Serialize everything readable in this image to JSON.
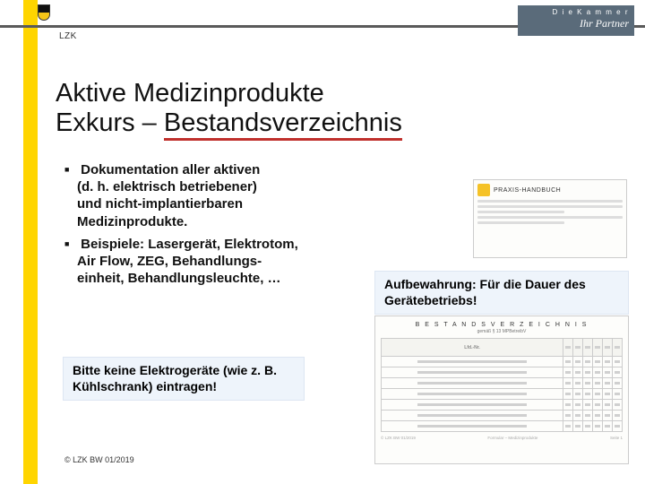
{
  "header": {
    "lzk": "LZK",
    "kammer_line1": "D i e   K a m m e r",
    "kammer_line2": "Ihr Partner"
  },
  "title": {
    "line1": "Aktive Medizinprodukte",
    "line2_prefix": "Exkurs – ",
    "line2_accent": "Bestandsverzeichnis"
  },
  "bullets": [
    {
      "lines": [
        "Dokumentation aller aktiven",
        "(d. h. elektrisch betriebener)",
        "und nicht-implantierbaren",
        "Medizinprodukte."
      ]
    },
    {
      "lines": [
        "Beispiele: Lasergerät, Elektrotom,",
        "Air Flow, ZEG, Behandlungs-",
        "einheit, Behandlungsleuchte, …"
      ]
    }
  ],
  "callout_right": "Aufbewahrung: Für die Dauer des Gerätebetriebs!",
  "callout_left": "Bitte keine Elektrogeräte (wie z. B. Kühlschrank) eintragen!",
  "praxis_handbuch": {
    "title": "PRAXIS-HANDBUCH"
  },
  "form": {
    "title": "B E S T A N D S V E R Z E I C H N I S",
    "subtitle": "gemäß § 13 MPBetreibV",
    "columns": [
      "Lfd.-Nr.",
      "",
      "",
      "",
      "",
      "",
      ""
    ],
    "rows": 7,
    "footer_left": "© LZK BW 01/2019",
    "footer_center": "Formular – Medizinprodukte",
    "footer_right": "Seite 1"
  },
  "copyright": "© LZK BW 01/2019",
  "colors": {
    "yellow": "#ffd500",
    "accent_red": "#c0302c",
    "callout_bg": "#eef4fb",
    "kammer_bg": "#5a6b7a"
  }
}
